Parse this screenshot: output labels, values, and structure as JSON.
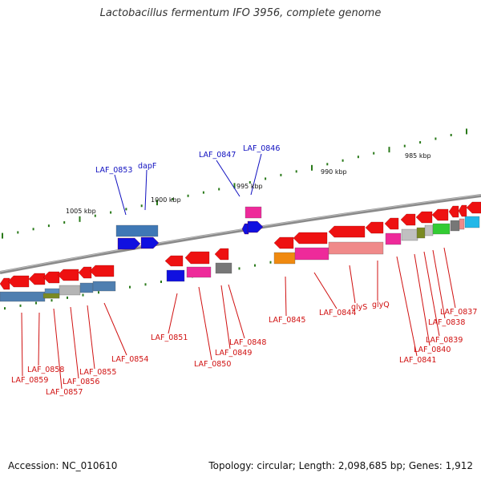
{
  "title": "Lactobacillus fermentum IFO 3956, complete genome",
  "footer": {
    "accession": "Accession: NC_010610",
    "summary": "Topology: circular; Length: 2,098,685 bp; Genes: 1,912"
  },
  "colors": {
    "upper_labels": "#1010c0",
    "lower_labels": "#d01010",
    "backbone": "#8a8a8a",
    "scale_ticks": "#2a7a1a"
  },
  "scale": [
    "1005 kbp",
    "1000 kbp",
    "995 kbp",
    "990 kbp",
    "985 kbp"
  ],
  "upper_labels": [
    "LAF_0853",
    "dapF",
    "LAF_0847",
    "LAF_0846"
  ],
  "lower_labels": [
    "LAF_0858",
    "LAF_0859",
    "LAF_0857",
    "LAF_0856",
    "LAF_0855",
    "LAF_0854",
    "LAF_0851",
    "LAF_0850",
    "LAF_0849",
    "LAF_0848",
    "LAF_0845",
    "LAF_0844",
    "glyS",
    "glyQ",
    "LAF_0841",
    "LAF_0840",
    "LAF_0839",
    "LAF_0838",
    "LAF_0837"
  ]
}
